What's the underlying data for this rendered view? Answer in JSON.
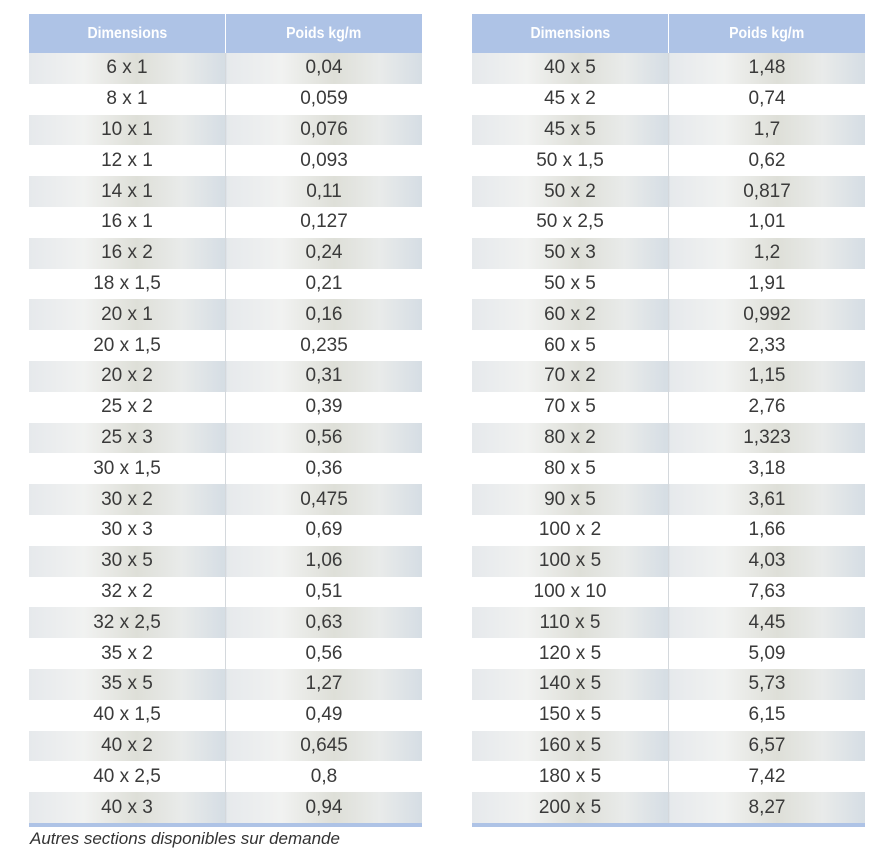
{
  "left_table": {
    "headers": [
      "Dimensions",
      "Poids kg/m"
    ],
    "rows": [
      [
        "6 x 1",
        "0,04"
      ],
      [
        "8 x 1",
        "0,059"
      ],
      [
        "10 x 1",
        "0,076"
      ],
      [
        "12 x 1",
        "0,093"
      ],
      [
        "14 x 1",
        "0,11"
      ],
      [
        "16 x 1",
        "0,127"
      ],
      [
        "16 x 2",
        "0,24"
      ],
      [
        "18 x 1,5",
        "0,21"
      ],
      [
        "20 x 1",
        "0,16"
      ],
      [
        "20 x 1,5",
        "0,235"
      ],
      [
        "20 x 2",
        "0,31"
      ],
      [
        "25 x 2",
        "0,39"
      ],
      [
        "25 x 3",
        "0,56"
      ],
      [
        "30 x 1,5",
        "0,36"
      ],
      [
        "30 x 2",
        "0,475"
      ],
      [
        "30 x 3",
        "0,69"
      ],
      [
        "30 x 5",
        "1,06"
      ],
      [
        "32 x 2",
        "0,51"
      ],
      [
        "32 x 2,5",
        "0,63"
      ],
      [
        "35 x 2",
        "0,56"
      ],
      [
        "35 x 5",
        "1,27"
      ],
      [
        "40 x 1,5",
        "0,49"
      ],
      [
        "40 x 2",
        "0,645"
      ],
      [
        "40 x 2,5",
        "0,8"
      ],
      [
        "40 x 3",
        "0,94"
      ]
    ]
  },
  "right_table": {
    "headers": [
      "Dimensions",
      "Poids kg/m"
    ],
    "rows": [
      [
        "40 x 5",
        "1,48"
      ],
      [
        "45 x 2",
        "0,74"
      ],
      [
        "45 x 5",
        "1,7"
      ],
      [
        "50 x 1,5",
        "0,62"
      ],
      [
        "50 x 2",
        "0,817"
      ],
      [
        "50 x 2,5",
        "1,01"
      ],
      [
        "50 x 3",
        "1,2"
      ],
      [
        "50 x 5",
        "1,91"
      ],
      [
        "60 x 2",
        "0,992"
      ],
      [
        "60 x 5",
        "2,33"
      ],
      [
        "70 x 2",
        "1,15"
      ],
      [
        "70 x 5",
        "2,76"
      ],
      [
        "80 x 2",
        "1,323"
      ],
      [
        "80 x 5",
        "3,18"
      ],
      [
        "90 x 5",
        "3,61"
      ],
      [
        "100 x 2",
        "1,66"
      ],
      [
        "100 x 5",
        "4,03"
      ],
      [
        "100 x 10",
        "7,63"
      ],
      [
        "110 x 5",
        "4,45"
      ],
      [
        "120 x 5",
        "5,09"
      ],
      [
        "140 x 5",
        "5,73"
      ],
      [
        "150 x 5",
        "6,15"
      ],
      [
        "160 x 5",
        "6,57"
      ],
      [
        "180 x 5",
        "7,42"
      ],
      [
        "200 x 5",
        "8,27"
      ]
    ]
  },
  "footnote": "Autres sections disponibles sur demande",
  "colors": {
    "header_bg": "#aec3e6",
    "header_text": "#ffffff",
    "text": "#3a3a3a"
  }
}
